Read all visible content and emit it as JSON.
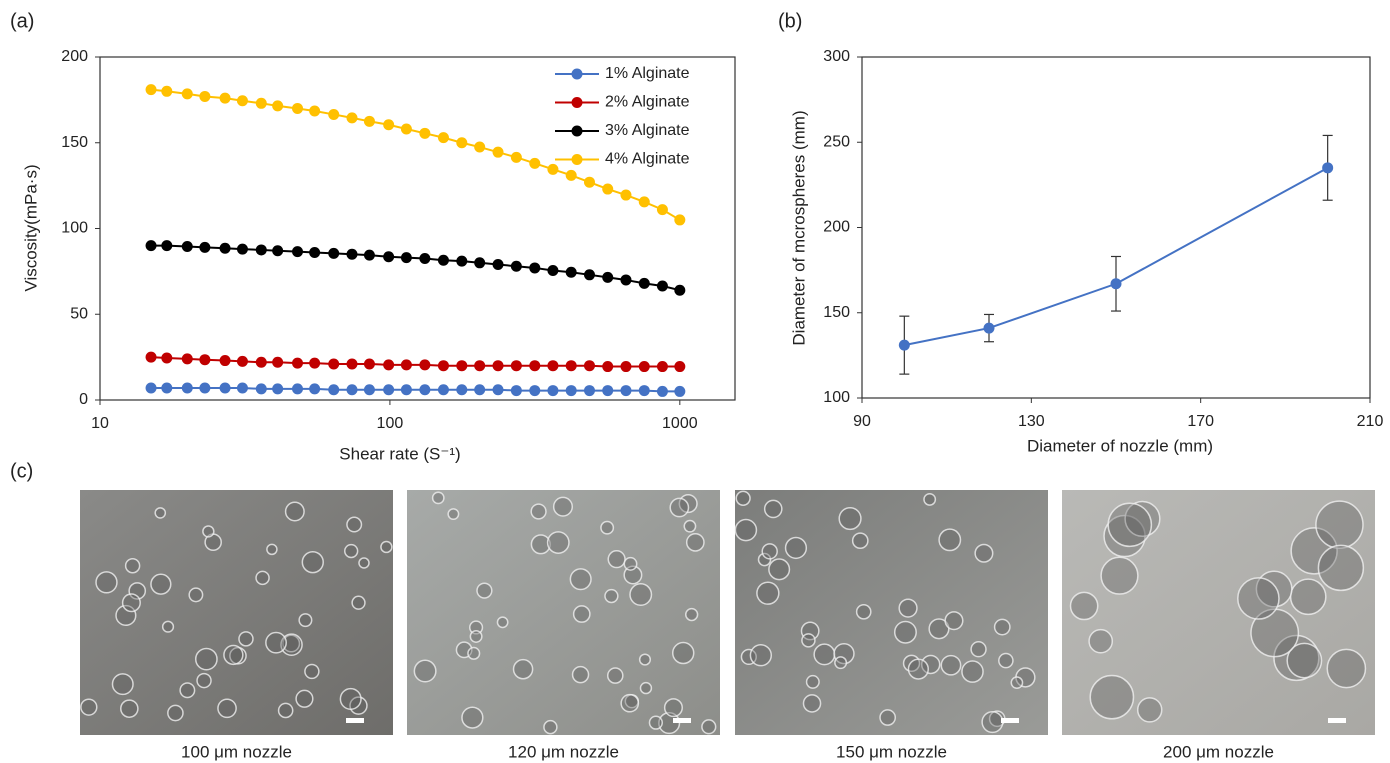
{
  "panels": [
    "(a)",
    "(b)",
    "(c)"
  ],
  "chart_data": [
    {
      "type": "line",
      "xscale": "log",
      "xlabel": "Shear rate (S⁻¹)",
      "ylabel": "Viscosity(mPa·s)",
      "x": [
        15,
        17,
        20,
        23,
        27,
        31,
        36,
        41,
        48,
        55,
        64,
        74,
        85,
        99,
        114,
        132,
        153,
        177,
        204,
        236,
        273,
        316,
        365,
        422,
        488,
        564,
        652,
        754,
        871,
        1000
      ],
      "xlim": [
        10,
        1550
      ],
      "xticks": [
        10,
        100,
        1000
      ],
      "ylim": [
        0,
        200
      ],
      "yticks": [
        0,
        50,
        100,
        150,
        200
      ],
      "legend": "upper right",
      "markers": true,
      "series": [
        {
          "name": "1% Alginate",
          "color": "#4472c4",
          "values": [
            7,
            7,
            7,
            7,
            7,
            7,
            6.5,
            6.5,
            6.5,
            6.5,
            6,
            6,
            6,
            6,
            6,
            6,
            6,
            6,
            6,
            6,
            5.5,
            5.5,
            5.5,
            5.5,
            5.5,
            5.5,
            5.5,
            5.5,
            5,
            5
          ]
        },
        {
          "name": "2% Alginate",
          "color": "#c00000",
          "values": [
            25,
            24.5,
            24,
            23.5,
            23,
            22.5,
            22,
            22,
            21.5,
            21.5,
            21,
            21,
            21,
            20.5,
            20.5,
            20.5,
            20,
            20,
            20,
            20,
            20,
            20,
            20,
            20,
            20,
            19.5,
            19.5,
            19.5,
            19.5,
            19.5
          ]
        },
        {
          "name": "3% Alginate",
          "color": "#000000",
          "values": [
            90,
            90,
            89.5,
            89,
            88.5,
            88,
            87.5,
            87,
            86.5,
            86,
            85.5,
            85,
            84.5,
            83.5,
            83,
            82.5,
            81.5,
            81,
            80,
            79,
            78,
            77,
            75.5,
            74.5,
            73,
            71.5,
            70,
            68,
            66.5,
            64
          ]
        },
        {
          "name": "4% Alginate",
          "color": "#ffc000",
          "values": [
            181,
            180,
            178.5,
            177,
            176,
            174.5,
            173,
            171.5,
            170,
            168.5,
            166.5,
            164.5,
            162.5,
            160.5,
            158,
            155.5,
            153,
            150,
            147.5,
            144.5,
            141.5,
            138,
            134.5,
            131,
            127,
            123,
            119.5,
            115.5,
            111,
            105
          ]
        }
      ]
    },
    {
      "type": "line",
      "xlabel": "Diameter of nozzle  (mm)",
      "ylabel": "Diameter of mcrospheres (mm)",
      "x": [
        100,
        120,
        150,
        200
      ],
      "xlim": [
        90,
        210
      ],
      "xticks": [
        90,
        130,
        170,
        210
      ],
      "ylim": [
        100,
        300
      ],
      "yticks": [
        100,
        150,
        200,
        250,
        300
      ],
      "markers": true,
      "series": [
        {
          "color": "#4472c4",
          "values": [
            131,
            141,
            167,
            235
          ],
          "errors": [
            17,
            8,
            16,
            19
          ]
        }
      ]
    }
  ],
  "images": [
    {
      "caption": "100 μm nozzle"
    },
    {
      "caption": "120 μm nozzle"
    },
    {
      "caption": "150 μm nozzle"
    },
    {
      "caption": "200 μm nozzle"
    }
  ]
}
